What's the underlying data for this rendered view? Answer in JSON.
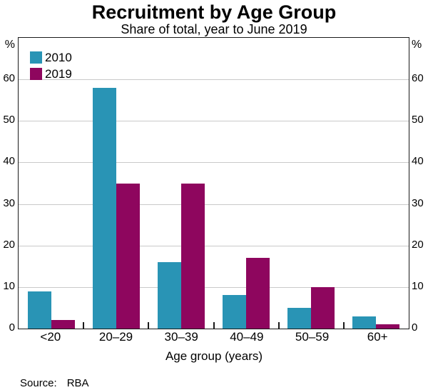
{
  "title": "Recruitment by Age Group",
  "subtitle": "Share of total, year to June 2019",
  "axis_unit_left": "%",
  "axis_unit_right": "%",
  "source_label": "Source:",
  "source_value": "RBA",
  "chart_data": {
    "type": "bar",
    "title": "Recruitment by Age Group",
    "subtitle": "Share of total, year to June 2019",
    "categories": [
      "<20",
      "20–29",
      "30–39",
      "40–49",
      "50–59",
      "60+"
    ],
    "series": [
      {
        "name": "2010",
        "color": "#2994B5",
        "values": [
          9,
          58,
          16,
          8,
          5,
          3
        ]
      },
      {
        "name": "2019",
        "color": "#8E065E",
        "values": [
          2,
          35,
          35,
          17,
          10,
          1
        ]
      }
    ],
    "xlabel": "Age group (years)",
    "ylabel": "%",
    "yticks": [
      0,
      10,
      20,
      30,
      40,
      50,
      60
    ],
    "ylim": [
      0,
      70
    ],
    "grid": true,
    "gridline_color": "#c9c9c9",
    "legend_position": "top-left",
    "source": "Source: RBA"
  }
}
